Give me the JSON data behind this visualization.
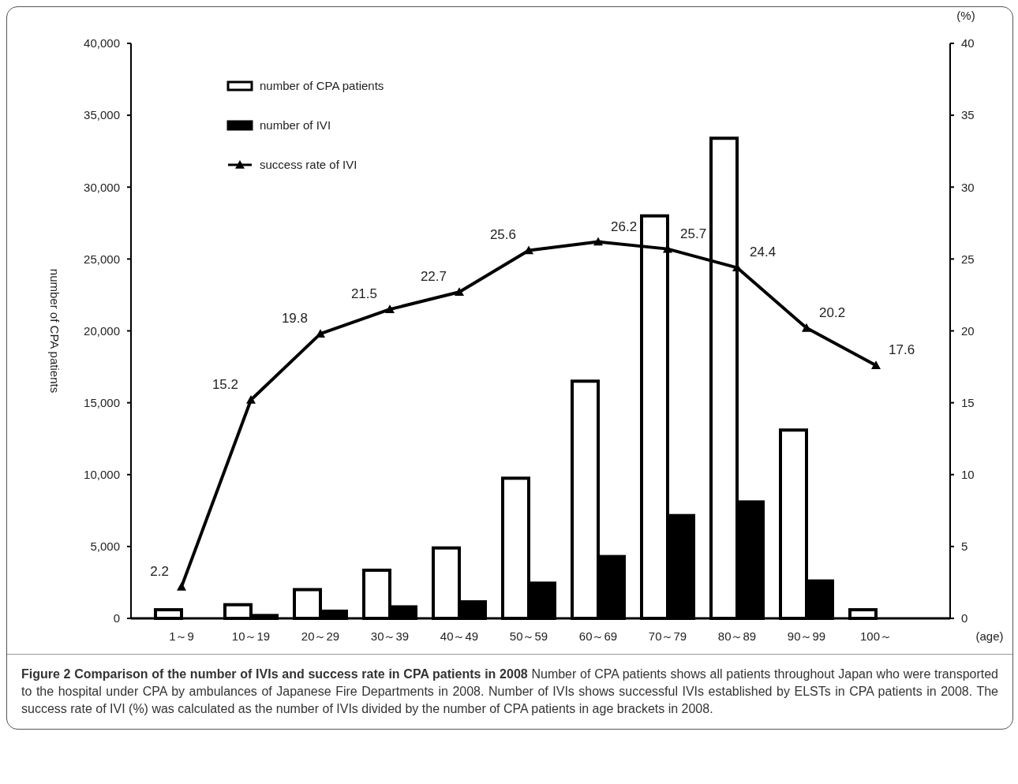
{
  "chart_data": {
    "type": "bar",
    "title": "Figure 2 Comparison of the number of IVIs and success rate in CPA patients in 2008",
    "ylabel": "number of CPA patients",
    "y2label": "(%)",
    "xlabel": "(age)",
    "categories": [
      "1～9",
      "10～19",
      "20～29",
      "30～39",
      "40～49",
      "50～59",
      "60～69",
      "70～79",
      "80～89",
      "90～99",
      "100～"
    ],
    "series": [
      {
        "name": "number of CPA patients",
        "color": "#ffffff",
        "values": [
          600,
          950,
          2000,
          3350,
          4900,
          9750,
          16500,
          28000,
          33400,
          13100,
          600
        ]
      },
      {
        "name": "number of IVI",
        "color": "#000000",
        "values": [
          null,
          200,
          500,
          800,
          1150,
          2450,
          4300,
          7150,
          8100,
          2600,
          null
        ]
      },
      {
        "name": "success rate of IVI",
        "type": "line",
        "axis": "y2",
        "color": "#000000",
        "marker": "triangle",
        "values": [
          2.2,
          15.2,
          19.8,
          21.5,
          22.7,
          25.6,
          26.2,
          25.7,
          24.4,
          20.2,
          17.6
        ],
        "value_labels": [
          "2.2",
          "15.2",
          "19.8",
          "21.5",
          "22.7",
          "25.6",
          "26.2",
          "25.7",
          "24.4",
          "20.2",
          "17.6"
        ]
      }
    ],
    "ylim": [
      0,
      40000
    ],
    "yticks": [
      {
        "value": 0,
        "label": "0"
      },
      {
        "value": 5000,
        "label": "5,000"
      },
      {
        "value": 10000,
        "label": "10,000"
      },
      {
        "value": 15000,
        "label": "15,000"
      },
      {
        "value": 20000,
        "label": "20,000"
      },
      {
        "value": 25000,
        "label": "25,000"
      },
      {
        "value": 30000,
        "label": "30,000"
      },
      {
        "value": 35000,
        "label": "35,000"
      },
      {
        "value": 40000,
        "label": "40,000"
      }
    ],
    "y2lim": [
      0,
      40
    ],
    "y2ticks": [
      0,
      5,
      10,
      15,
      20,
      25,
      30,
      35,
      40
    ],
    "legend": "top left",
    "grid": false,
    "annotations": [
      "Number of CPA patients shows all patients throughout Japan who were transported to the hospital under CPA by ambulances of Japanese Fire Departments in 2008. Number of IVIs shows successful IVIs established by ELSTs in CPA patients in 2008. The success rate of IVI (%) was calculated as the number of IVIs divided by the number of CPA patients in age brackets in 2008."
    ]
  }
}
